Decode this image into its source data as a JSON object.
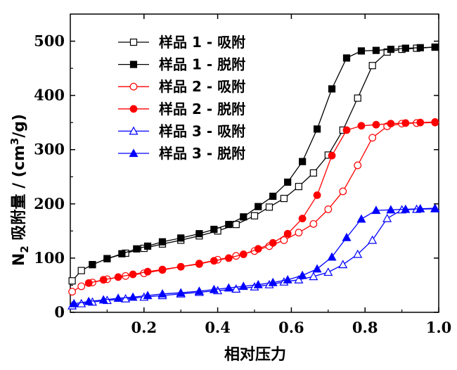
{
  "chart_data": {
    "type": "line",
    "xlabel": "相对压力",
    "ylabel_main": "N",
    "ylabel_sub": "2",
    "ylabel_mid": " 吸附量 / (cm",
    "ylabel_sup": "3",
    "ylabel_end": "/g)",
    "xlim": [
      0,
      1.0
    ],
    "ylim": [
      0,
      550
    ],
    "xticks": [
      0.2,
      0.4,
      0.6,
      0.8,
      1.0
    ],
    "xtick_labels": [
      "0.2",
      "0.4",
      "0.6",
      "0.8",
      "1.0"
    ],
    "yticks": [
      0,
      100,
      200,
      300,
      400,
      500
    ],
    "ytick_labels": [
      "0",
      "100",
      "200",
      "300",
      "400",
      "500"
    ],
    "grid": false,
    "legend_position": "top-left",
    "series": [
      {
        "name": "样品 1 - 吸附",
        "color": "#000000",
        "marker": "square",
        "filled": false,
        "x": [
          0.005,
          0.03,
          0.06,
          0.1,
          0.15,
          0.2,
          0.25,
          0.3,
          0.35,
          0.4,
          0.45,
          0.5,
          0.54,
          0.58,
          0.62,
          0.66,
          0.7,
          0.74,
          0.78,
          0.82,
          0.86,
          0.9,
          0.94,
          0.99
        ],
        "y": [
          58,
          77,
          88,
          99,
          109,
          118,
          126,
          133,
          141,
          150,
          162,
          178,
          194,
          210,
          232,
          257,
          290,
          336,
          395,
          455,
          480,
          485,
          487,
          489
        ]
      },
      {
        "name": "样品 1 - 脱附",
        "color": "#000000",
        "marker": "square",
        "filled": true,
        "x": [
          0.99,
          0.95,
          0.91,
          0.87,
          0.83,
          0.79,
          0.75,
          0.71,
          0.67,
          0.63,
          0.59,
          0.55,
          0.51,
          0.47,
          0.43,
          0.39,
          0.35,
          0.3,
          0.25,
          0.21,
          0.18,
          0.14,
          0.1,
          0.06
        ],
        "y": [
          489,
          488,
          487,
          485,
          483,
          482,
          469,
          412,
          338,
          278,
          240,
          214,
          195,
          176,
          162,
          153,
          145,
          137,
          130,
          122,
          117,
          108,
          99,
          88
        ]
      },
      {
        "name": "样品 2 - 吸附",
        "color": "#ff0000",
        "marker": "circle",
        "filled": false,
        "x": [
          0.005,
          0.03,
          0.06,
          0.1,
          0.15,
          0.2,
          0.25,
          0.3,
          0.35,
          0.4,
          0.45,
          0.5,
          0.54,
          0.58,
          0.62,
          0.66,
          0.7,
          0.74,
          0.78,
          0.82,
          0.86,
          0.9,
          0.94,
          0.99
        ],
        "y": [
          38,
          48,
          55,
          61,
          67,
          72,
          78,
          84,
          90,
          97,
          104,
          113,
          122,
          133,
          147,
          163,
          190,
          223,
          271,
          322,
          343,
          348,
          349,
          350
        ]
      },
      {
        "name": "样品 2 - 脱附",
        "color": "#ff0000",
        "marker": "circle",
        "filled": true,
        "x": [
          0.99,
          0.95,
          0.91,
          0.87,
          0.83,
          0.79,
          0.75,
          0.71,
          0.67,
          0.63,
          0.59,
          0.55,
          0.51,
          0.47,
          0.43,
          0.39,
          0.35,
          0.3,
          0.25,
          0.21,
          0.17,
          0.13,
          0.09,
          0.05
        ],
        "y": [
          351,
          350,
          349,
          348,
          346,
          344,
          336,
          289,
          216,
          173,
          145,
          128,
          117,
          107,
          100,
          95,
          89,
          84,
          79,
          75,
          70,
          65,
          60,
          54
        ]
      },
      {
        "name": "样品 3 - 吸附",
        "color": "#0000ff",
        "marker": "triangle",
        "filled": false,
        "x": [
          0.005,
          0.03,
          0.06,
          0.1,
          0.15,
          0.2,
          0.25,
          0.3,
          0.35,
          0.4,
          0.45,
          0.5,
          0.54,
          0.58,
          0.62,
          0.66,
          0.7,
          0.74,
          0.78,
          0.82,
          0.86,
          0.9,
          0.94,
          0.99
        ],
        "y": [
          12,
          16,
          19,
          22,
          25,
          28,
          31,
          34,
          37,
          40,
          43,
          47,
          51,
          56,
          60,
          66,
          74,
          88,
          107,
          133,
          173,
          189,
          190,
          191
        ]
      },
      {
        "name": "样品 3 - 脱附",
        "color": "#0000ff",
        "marker": "triangle",
        "filled": true,
        "x": [
          0.99,
          0.95,
          0.91,
          0.87,
          0.83,
          0.79,
          0.75,
          0.71,
          0.67,
          0.63,
          0.59,
          0.55,
          0.51,
          0.47,
          0.43,
          0.39,
          0.35,
          0.3,
          0.25,
          0.21,
          0.17,
          0.13,
          0.09,
          0.05,
          0.01
        ],
        "y": [
          192,
          191,
          190,
          189,
          188,
          172,
          138,
          102,
          80,
          68,
          60,
          55,
          51,
          48,
          45,
          42,
          39,
          36,
          34,
          31,
          28,
          26,
          23,
          20,
          16
        ]
      }
    ]
  }
}
